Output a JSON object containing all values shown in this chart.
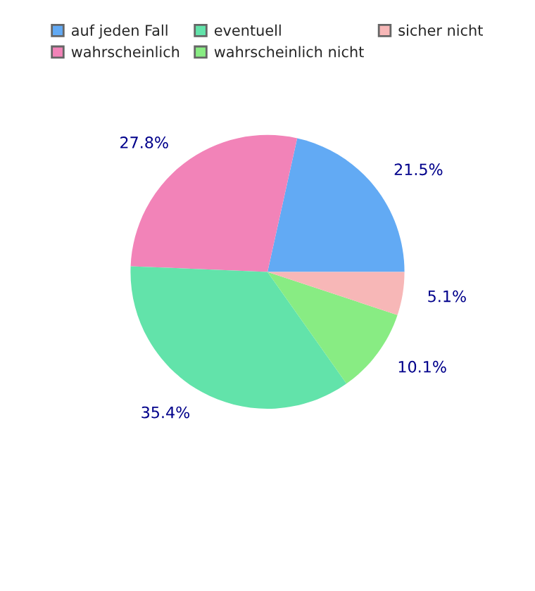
{
  "chart_data": {
    "type": "pie",
    "categories": [
      "auf jeden Fall",
      "wahrscheinlich",
      "eventuell",
      "wahrscheinlich nicht",
      "sicher nicht"
    ],
    "values": [
      21.5,
      27.8,
      35.4,
      10.1,
      5.1
    ],
    "colors": [
      "#62aaf4",
      "#f283b8",
      "#62e3aa",
      "#88ec83",
      "#f7b7b7"
    ],
    "value_labels": [
      "21.5%",
      "27.8%",
      "35.4%",
      "10.1%",
      "5.1%"
    ],
    "legend": "top"
  }
}
